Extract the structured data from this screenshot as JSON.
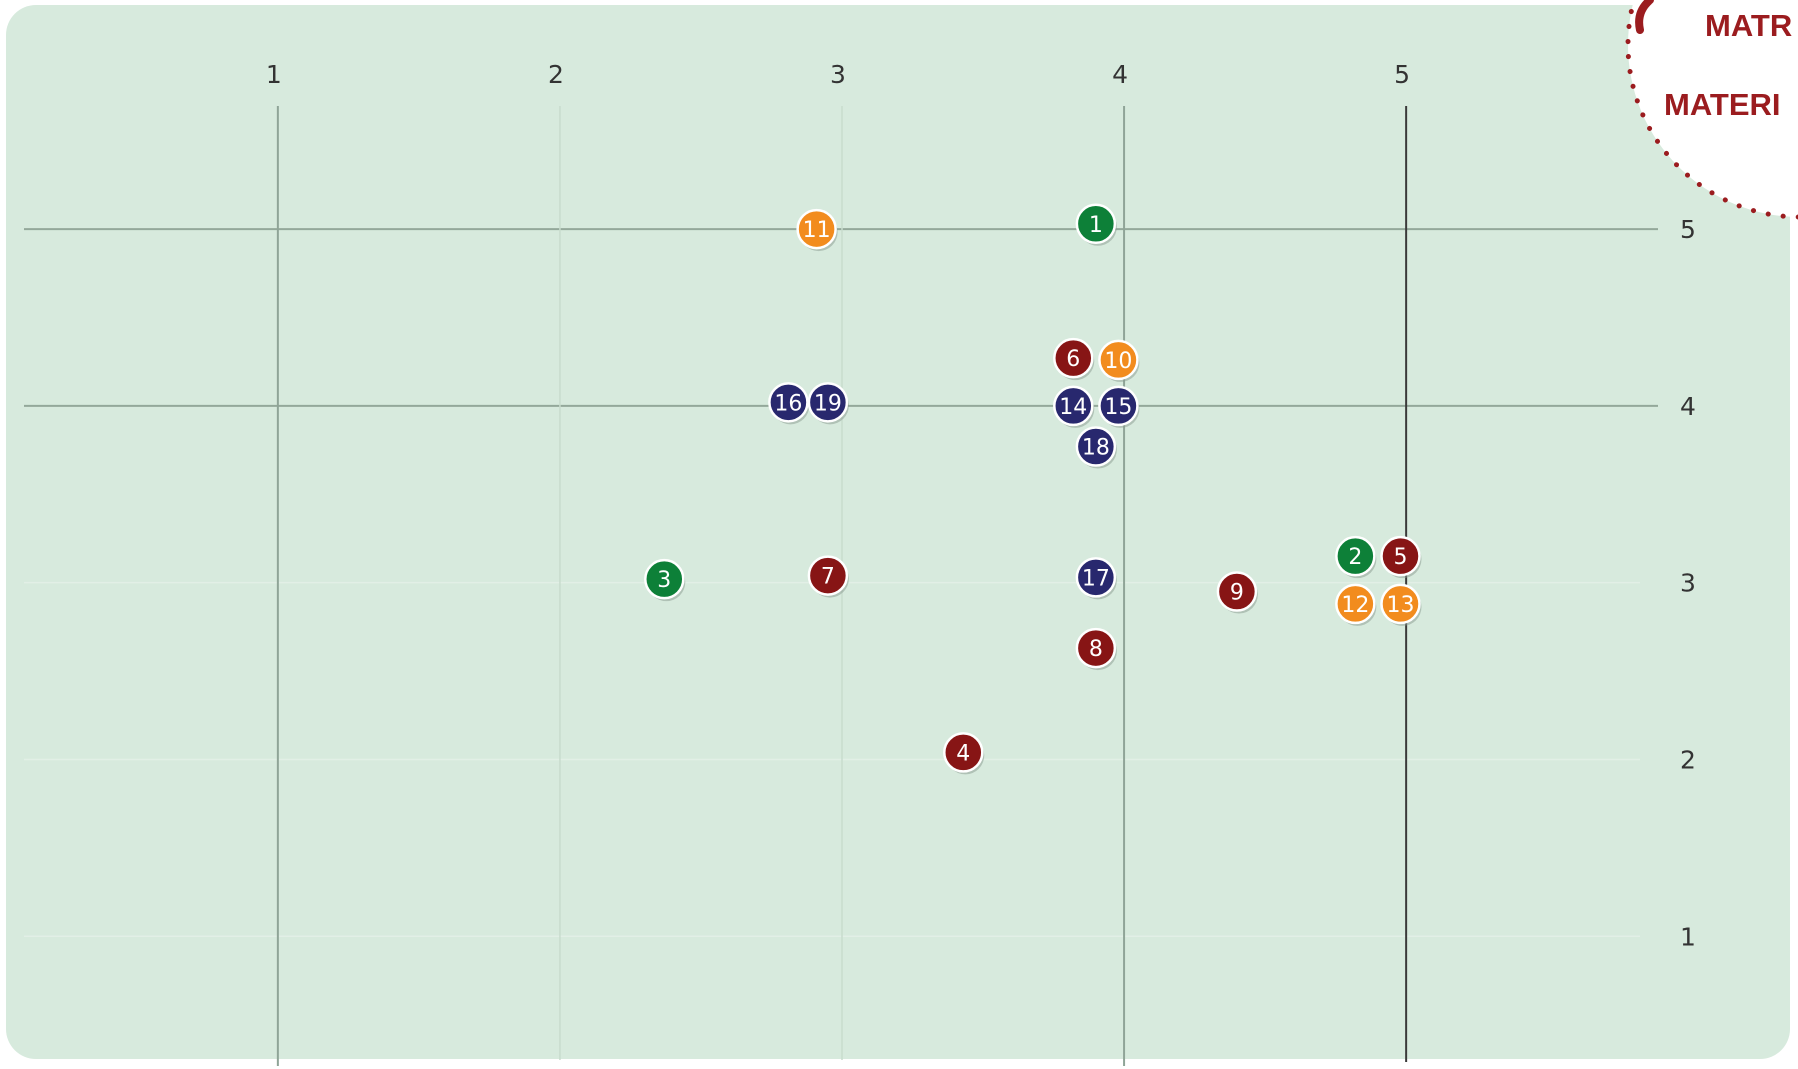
{
  "badge": {
    "line1": "MATR",
    "line2": "MATERI"
  },
  "chart_data": {
    "type": "scatter",
    "title": "",
    "xlabel": "",
    "ylabel": "",
    "x_ticks": [
      "1",
      "2",
      "3",
      "4",
      "5"
    ],
    "y_ticks": [
      "5",
      "4",
      "3",
      "2",
      "1"
    ],
    "xlim": [
      0.1,
      5.9
    ],
    "ylim": [
      0.3,
      5.9
    ],
    "grid": true,
    "x_reference_line": 5,
    "colors": {
      "green": "#0d8038",
      "orange": "#f28c1e",
      "red": "#871515",
      "navy": "#28286e"
    },
    "points": [
      {
        "label": "1",
        "x": 3.9,
        "y": 5.03,
        "color": "green"
      },
      {
        "label": "2",
        "x": 4.82,
        "y": 3.15,
        "color": "green"
      },
      {
        "label": "3",
        "x": 2.37,
        "y": 3.02,
        "color": "green"
      },
      {
        "label": "4",
        "x": 3.43,
        "y": 2.04,
        "color": "red"
      },
      {
        "label": "5",
        "x": 4.98,
        "y": 3.15,
        "color": "red"
      },
      {
        "label": "6",
        "x": 3.82,
        "y": 4.27,
        "color": "red"
      },
      {
        "label": "7",
        "x": 2.95,
        "y": 3.04,
        "color": "red"
      },
      {
        "label": "8",
        "x": 3.9,
        "y": 2.63,
        "color": "red"
      },
      {
        "label": "9",
        "x": 4.4,
        "y": 2.95,
        "color": "red"
      },
      {
        "label": "10",
        "x": 3.98,
        "y": 4.26,
        "color": "orange"
      },
      {
        "label": "11",
        "x": 2.91,
        "y": 5.0,
        "color": "orange"
      },
      {
        "label": "12",
        "x": 4.82,
        "y": 2.88,
        "color": "orange"
      },
      {
        "label": "13",
        "x": 4.98,
        "y": 2.88,
        "color": "orange"
      },
      {
        "label": "14",
        "x": 3.82,
        "y": 4.0,
        "color": "navy"
      },
      {
        "label": "15",
        "x": 3.98,
        "y": 4.0,
        "color": "navy"
      },
      {
        "label": "16",
        "x": 2.81,
        "y": 4.02,
        "color": "navy"
      },
      {
        "label": "17",
        "x": 3.9,
        "y": 3.03,
        "color": "navy"
      },
      {
        "label": "18",
        "x": 3.9,
        "y": 3.77,
        "color": "navy"
      },
      {
        "label": "19",
        "x": 2.95,
        "y": 4.02,
        "color": "navy"
      }
    ]
  }
}
